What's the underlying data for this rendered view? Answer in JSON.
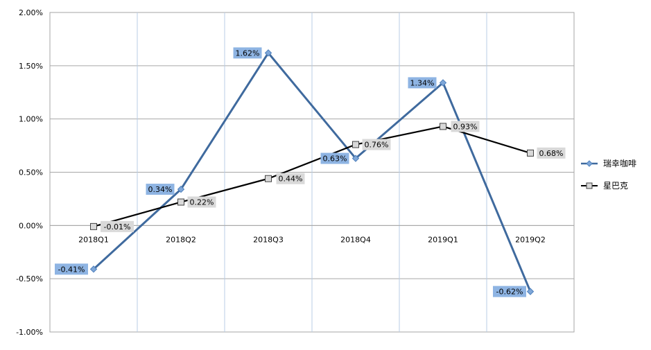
{
  "chart_data": {
    "type": "line",
    "categories": [
      "2018Q1",
      "2018Q2",
      "2018Q3",
      "2018Q4",
      "2019Q1",
      "2019Q2"
    ],
    "ylim": [
      -1.0,
      2.0
    ],
    "yticks": [
      2.0,
      1.5,
      1.0,
      0.5,
      0.0,
      -0.5,
      -1.0
    ],
    "ytick_labels": [
      "2.00%",
      "1.50%",
      "1.00%",
      "0.50%",
      "0.00%",
      "-0.50%",
      "-1.00%"
    ],
    "grid": true,
    "legend_position": "right",
    "series": [
      {
        "name": "瑞幸咖啡",
        "values": [
          -0.41,
          0.34,
          1.62,
          0.63,
          1.34,
          -0.62
        ],
        "labels": [
          "-0.41%",
          "0.34%",
          "1.62%",
          "0.63%",
          "1.34%",
          "-0.62%"
        ],
        "color": "#3F6A9E",
        "marker": "diamond",
        "label_bg": "#8EB4E3"
      },
      {
        "name": "星巴克",
        "values": [
          -0.01,
          0.22,
          0.44,
          0.76,
          0.93,
          0.68
        ],
        "labels": [
          "-0.01%",
          "0.22%",
          "0.44%",
          "0.76%",
          "0.93%",
          "0.68%"
        ],
        "color": "#000000",
        "marker": "square",
        "label_bg": "#D9D9D9"
      }
    ]
  }
}
